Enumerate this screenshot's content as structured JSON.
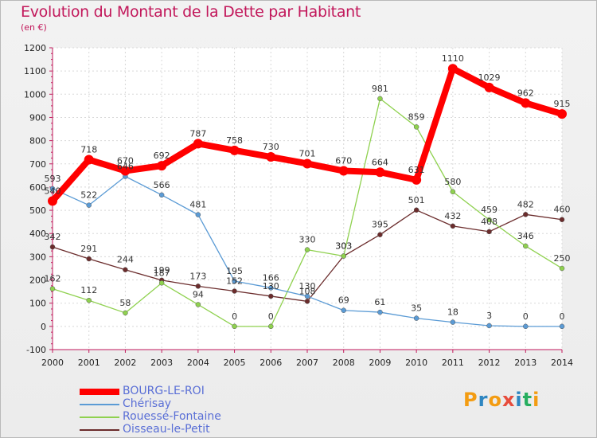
{
  "title": "Evolution du Montant de la Dette par Habitant",
  "unit": "(en €)",
  "logo": {
    "letters": [
      "P",
      "r",
      "o",
      "x",
      "i",
      "t",
      "i"
    ],
    "colors": [
      "#f39c12",
      "#2e86c1",
      "#f39c12",
      "#e74c3c",
      "#2e86c1",
      "#27ae60",
      "#f39c12"
    ]
  },
  "chart_data": {
    "type": "line",
    "x": [
      "2000",
      "2001",
      "2002",
      "2003",
      "2004",
      "2005",
      "2006",
      "2007",
      "2008",
      "2009",
      "2010",
      "2011",
      "2012",
      "2013",
      "2014"
    ],
    "ylim": [
      -100,
      1200
    ],
    "yticks": [
      "-100",
      "0",
      "100",
      "200",
      "300",
      "400",
      "500",
      "600",
      "700",
      "800",
      "900",
      "1000",
      "1100",
      "1200"
    ],
    "grid": true,
    "legend_position": "bottom-left",
    "series": [
      {
        "name": "BOURG-LE-ROI",
        "color": "#ff0000",
        "values": [
          540,
          718,
          670,
          692,
          787,
          758,
          730,
          701,
          670,
          664,
          631,
          1110,
          1029,
          962,
          915
        ],
        "labels": [
          "540",
          "718",
          "670",
          "692",
          "787",
          "758",
          "730",
          "701",
          "670",
          "664",
          "631",
          "1110",
          "1029",
          "962",
          "915"
        ]
      },
      {
        "name": "Chérisay",
        "color": "#5b9bd5",
        "values": [
          593,
          522,
          646,
          566,
          481,
          195,
          166,
          130,
          69,
          61,
          35,
          18,
          3,
          0,
          0
        ],
        "labels": [
          "593",
          "522",
          "646",
          "566",
          "481",
          "195",
          "166",
          "130",
          "69",
          "61",
          "35",
          "18",
          "3",
          "0",
          "0"
        ]
      },
      {
        "name": "Rouessé-Fontaine",
        "color": "#8fd14f",
        "values": [
          162,
          112,
          58,
          187,
          94,
          0,
          0,
          330,
          303,
          981,
          859,
          580,
          459,
          346,
          250
        ],
        "labels": [
          "162",
          "112",
          "58",
          "187",
          "94",
          "0",
          "0",
          "330",
          "303",
          "981",
          "859",
          "580",
          "459",
          "346",
          "250"
        ]
      },
      {
        "name": "Oisseau-le-Petit",
        "color": "#6b2c2c",
        "values": [
          342,
          291,
          244,
          199,
          173,
          152,
          130,
          108,
          303,
          395,
          501,
          432,
          408,
          482,
          460
        ],
        "labels": [
          "342",
          "291",
          "244",
          "199",
          "173",
          "152",
          "130",
          "108",
          "303",
          "395",
          "501",
          "432",
          "408",
          "482",
          "460"
        ]
      }
    ]
  }
}
